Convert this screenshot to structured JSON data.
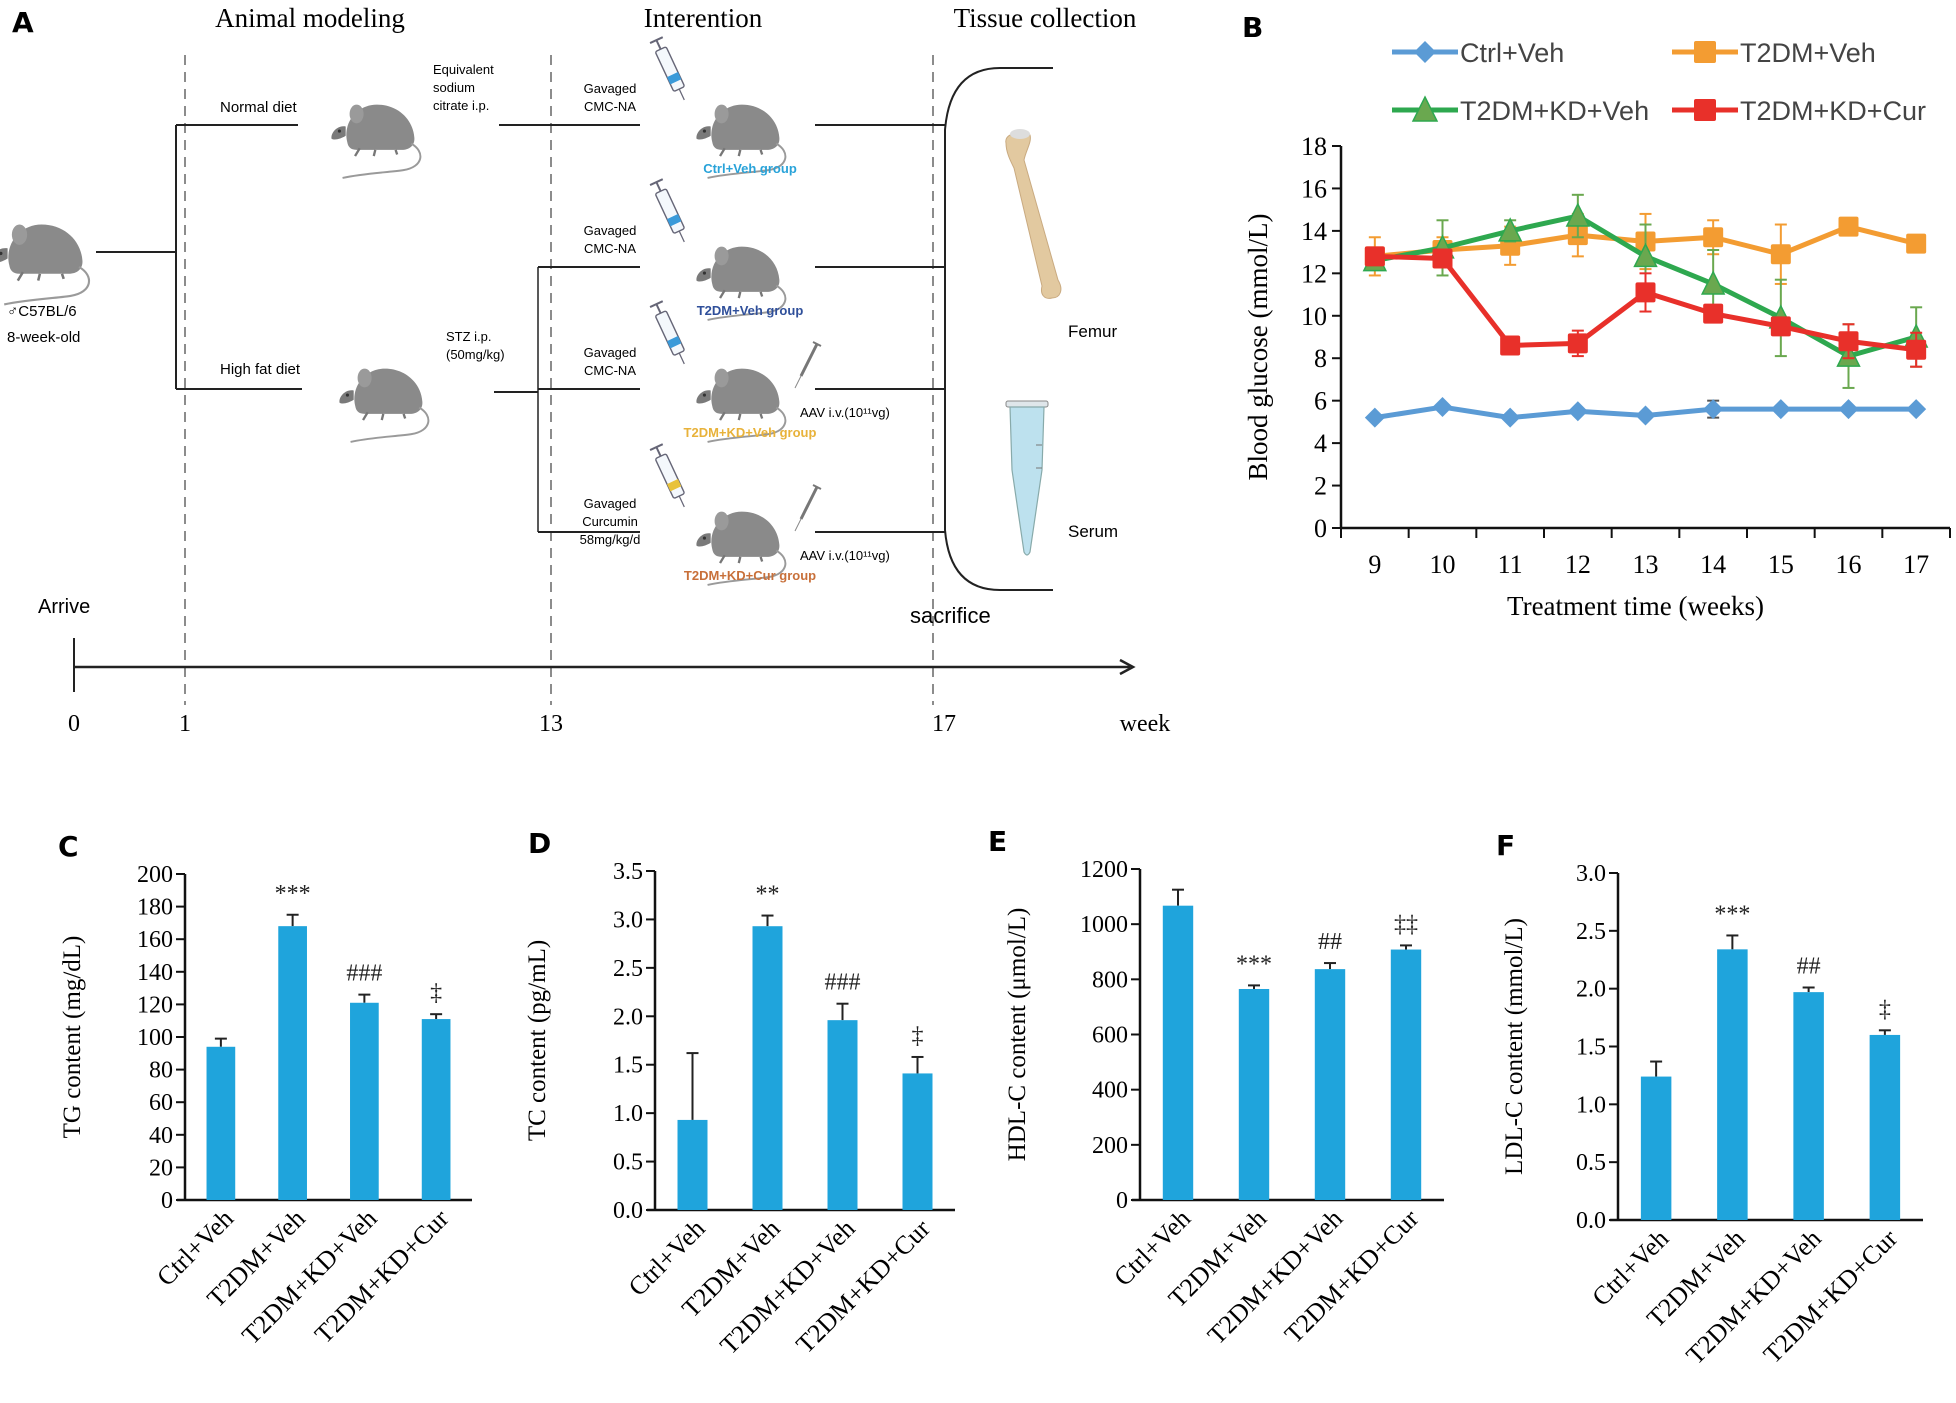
{
  "panel_letters": {
    "A": "A",
    "B": "B",
    "C": "C",
    "D": "D",
    "E": "E",
    "F": "F"
  },
  "schematic": {
    "phase_titles": [
      "Animal modeling",
      "Interention",
      "Tissue collection"
    ],
    "mouse_strain": "♂C57BL/6",
    "mouse_age": "8-week-old",
    "diets": [
      "Normal diet",
      "High fat diet"
    ],
    "modeling_treatments": {
      "normal": [
        "Equivalent",
        "sodium",
        "citrate i.p."
      ],
      "hfd": [
        "STZ i.p.",
        "(50mg/kg)"
      ]
    },
    "groups": [
      {
        "gavage": [
          "Gavaged",
          "CMC-NA"
        ],
        "label": "Ctrl+Veh group",
        "color": "#29a3d9",
        "aav": null,
        "syringe_color": "#3a9ad9"
      },
      {
        "gavage": [
          "Gavaged",
          "CMC-NA"
        ],
        "label": "T2DM+Veh group",
        "color": "#2f4f9a",
        "aav": null,
        "syringe_color": "#3a9ad9"
      },
      {
        "gavage": [
          "Gavaged",
          "CMC-NA"
        ],
        "label": "T2DM+KD+Veh group",
        "color": "#e8b23a",
        "aav": "AAV i.v.(10¹¹vg)",
        "syringe_color": "#3a9ad9"
      },
      {
        "gavage": [
          "Gavaged",
          "Curcumin",
          "58mg/kg/d"
        ],
        "label": "T2DM+KD+Cur group",
        "color": "#c8703a",
        "aav": "AAV i.v.(10¹¹vg)",
        "syringe_color": "#e8c23a"
      }
    ],
    "tissues": [
      "Femur",
      "Serum"
    ],
    "events": {
      "arrive": "Arrive",
      "sacrifice": "sacrifice"
    },
    "timeline_ticks": [
      "0",
      "1",
      "13",
      "17"
    ],
    "timeline_unit": "week"
  },
  "chart_data": [
    {
      "id": "B",
      "type": "line",
      "title": "",
      "xlabel": "Treatment time (weeks)",
      "ylabel": "Blood glucose (mmol/L)",
      "x": [
        9,
        10,
        11,
        12,
        13,
        14,
        15,
        16,
        17
      ],
      "ylim": [
        0,
        18
      ],
      "yticks": [
        0,
        2,
        4,
        6,
        8,
        10,
        12,
        14,
        16,
        18
      ],
      "grid": false,
      "legend": "top",
      "series": [
        {
          "name": "Ctrl+Veh",
          "color": "#5b9bd5",
          "marker": "diamond",
          "values": [
            5.2,
            5.7,
            5.2,
            5.5,
            5.3,
            5.6,
            5.6,
            5.6,
            5.6
          ],
          "errors": [
            0.1,
            0.1,
            0.1,
            0.1,
            0.1,
            0.4,
            0.1,
            0.1,
            0.1
          ]
        },
        {
          "name": "T2DM+Veh",
          "color": "#f39c32",
          "marker": "square",
          "values": [
            12.8,
            13.1,
            13.3,
            13.8,
            13.5,
            13.7,
            12.9,
            14.2,
            13.4
          ],
          "errors": [
            0.9,
            0.6,
            0.9,
            1.0,
            1.3,
            0.8,
            1.4,
            0.2,
            0.2
          ]
        },
        {
          "name": "T2DM+KD+Veh",
          "color": "#2ea84f",
          "marker": "triangle",
          "values": [
            12.6,
            13.2,
            14.0,
            14.7,
            12.8,
            11.5,
            9.9,
            8.1,
            9.0
          ],
          "errors": [
            0.3,
            1.3,
            0.5,
            1.0,
            1.5,
            1.6,
            1.8,
            1.5,
            1.4
          ]
        },
        {
          "name": "T2DM+KD+Cur",
          "color": "#e8302a",
          "marker": "square",
          "values": [
            12.8,
            12.7,
            8.6,
            8.7,
            11.1,
            10.1,
            9.5,
            8.8,
            8.4
          ],
          "errors": [
            0.2,
            0.2,
            0.1,
            0.6,
            0.9,
            0.1,
            0.1,
            0.8,
            0.8
          ]
        }
      ]
    },
    {
      "id": "C",
      "type": "bar",
      "categories": [
        "Ctrl+Veh",
        "T2DM+Veh",
        "T2DM+KD+Veh",
        "T2DM+KD+Cur"
      ],
      "values": [
        94,
        168,
        121,
        111
      ],
      "errors": [
        5,
        7,
        5,
        3
      ],
      "annotations": [
        "",
        "***",
        "###",
        "‡"
      ],
      "ylabel": "TG content (mg/dL)",
      "ylim": [
        0,
        200
      ],
      "yticks": [
        "0",
        "20",
        "40",
        "60",
        "80",
        "100",
        "120",
        "140",
        "160",
        "180",
        "200"
      ],
      "color": "#1fa4dc"
    },
    {
      "id": "D",
      "type": "bar",
      "categories": [
        "Ctrl+Veh",
        "T2DM+Veh",
        "T2DM+KD+Veh",
        "T2DM+KD+Cur"
      ],
      "values": [
        0.93,
        2.93,
        1.96,
        1.41
      ],
      "errors": [
        0.69,
        0.11,
        0.17,
        0.17
      ],
      "annotations": [
        "",
        "**",
        "###",
        "‡"
      ],
      "ylabel": "TC content (pg/mL)",
      "ylim": [
        0,
        3.5
      ],
      "yticks": [
        "0.0",
        "0.5",
        "1.0",
        "1.5",
        "2.0",
        "2.5",
        "3.0",
        "3.5"
      ],
      "color": "#1fa4dc"
    },
    {
      "id": "E",
      "type": "bar",
      "categories": [
        "Ctrl+Veh",
        "T2DM+Veh",
        "T2DM+KD+Veh",
        "T2DM+KD+Cur"
      ],
      "values": [
        1067,
        765,
        837,
        908
      ],
      "errors": [
        58,
        13,
        22,
        15
      ],
      "annotations": [
        "",
        "***",
        "##",
        "‡‡"
      ],
      "ylabel": "HDL-C content (μmol/L)",
      "ylim": [
        0,
        1200
      ],
      "yticks": [
        "0",
        "200",
        "400",
        "600",
        "800",
        "1000",
        "1200"
      ],
      "color": "#1fa4dc"
    },
    {
      "id": "F",
      "type": "bar",
      "categories": [
        "Ctrl+Veh",
        "T2DM+Veh",
        "T2DM+KD+Veh",
        "T2DM+KD+Cur"
      ],
      "values": [
        1.24,
        2.34,
        1.97,
        1.6
      ],
      "errors": [
        0.13,
        0.12,
        0.04,
        0.04
      ],
      "annotations": [
        "",
        "***",
        "##",
        "‡"
      ],
      "ylabel": "LDL-C content (mmol/L)",
      "ylim": [
        0,
        3.0
      ],
      "yticks": [
        "0.0",
        "0.5",
        "1.0",
        "1.5",
        "2.0",
        "2.5",
        "3.0"
      ],
      "color": "#1fa4dc"
    }
  ]
}
